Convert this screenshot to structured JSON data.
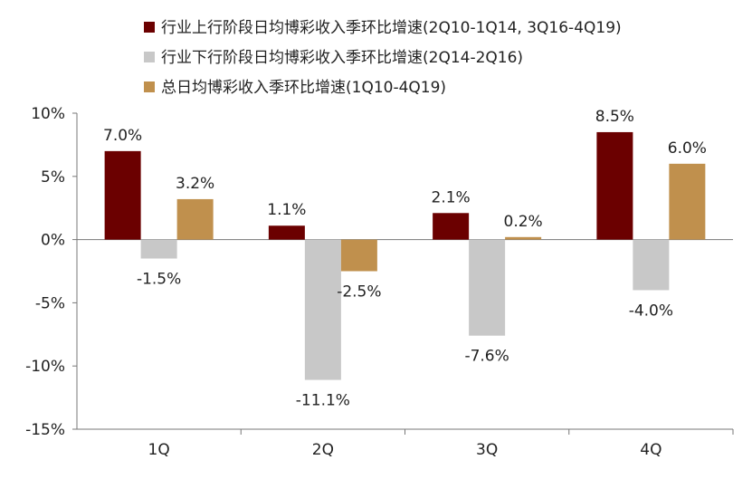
{
  "chart_data": {
    "type": "bar",
    "title": "",
    "xlabel": "",
    "ylabel": "",
    "categories": [
      "1Q",
      "2Q",
      "3Q",
      "4Q"
    ],
    "ylim": [
      -15,
      10
    ],
    "yticks": [
      10,
      5,
      0,
      -5,
      -10,
      -15
    ],
    "ytick_labels": [
      "10%",
      "5%",
      "0%",
      "-5%",
      "-10%",
      "-15%"
    ],
    "grid": false,
    "legend_position": "top",
    "series": [
      {
        "name": "行业上行阶段日均博彩收入季环比增速(2Q10-1Q14, 3Q16-4Q19)",
        "color": "#6b0000",
        "values": [
          7.0,
          1.1,
          2.1,
          8.5
        ],
        "labels": [
          "7.0%",
          "1.1%",
          "2.1%",
          "8.5%"
        ]
      },
      {
        "name": "行业下行阶段日均博彩收入季环比增速(2Q14-2Q16)",
        "color": "#c8c8c8",
        "values": [
          -1.5,
          -11.1,
          -7.6,
          -4.0
        ],
        "labels": [
          "-1.5%",
          "-11.1%",
          "-7.6%",
          "-4.0%"
        ]
      },
      {
        "name": "总日均博彩收入季环比增速(1Q10-4Q19)",
        "color": "#c0904d",
        "values": [
          3.2,
          -2.5,
          0.2,
          6.0
        ],
        "labels": [
          "3.2%",
          "-2.5%",
          "0.2%",
          "6.0%"
        ]
      }
    ]
  }
}
